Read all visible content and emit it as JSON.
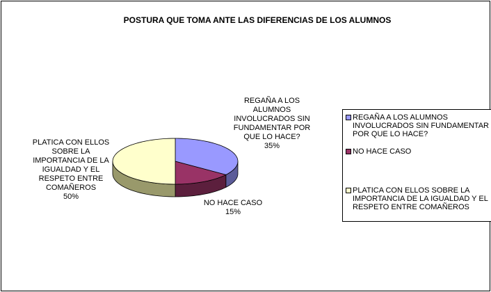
{
  "chart_data": {
    "type": "pie",
    "title": "POSTURA QUE TOMA ANTE LAS DIFERENCIAS DE LOS ALUMNOS",
    "categories": [
      "REGAÑA A LOS ALUMNOS INVOLUCRADOS SIN FUNDAMENTAR POR QUE LO HACE?",
      "NO HACE CASO",
      "PLATICA CON ELLOS SOBRE LA IMPORTANCIA DE LA IGUALDAD Y EL RESPETO ENTRE COMAÑEROS"
    ],
    "values": [
      35,
      15,
      50
    ],
    "value_labels": [
      "35%",
      "15%",
      "50%"
    ],
    "colors": [
      "#9999ff",
      "#993366",
      "#ffffcc"
    ],
    "side_colors": [
      "#5c5c99",
      "#5c1f3d",
      "#99996b"
    ],
    "legend": "right"
  }
}
